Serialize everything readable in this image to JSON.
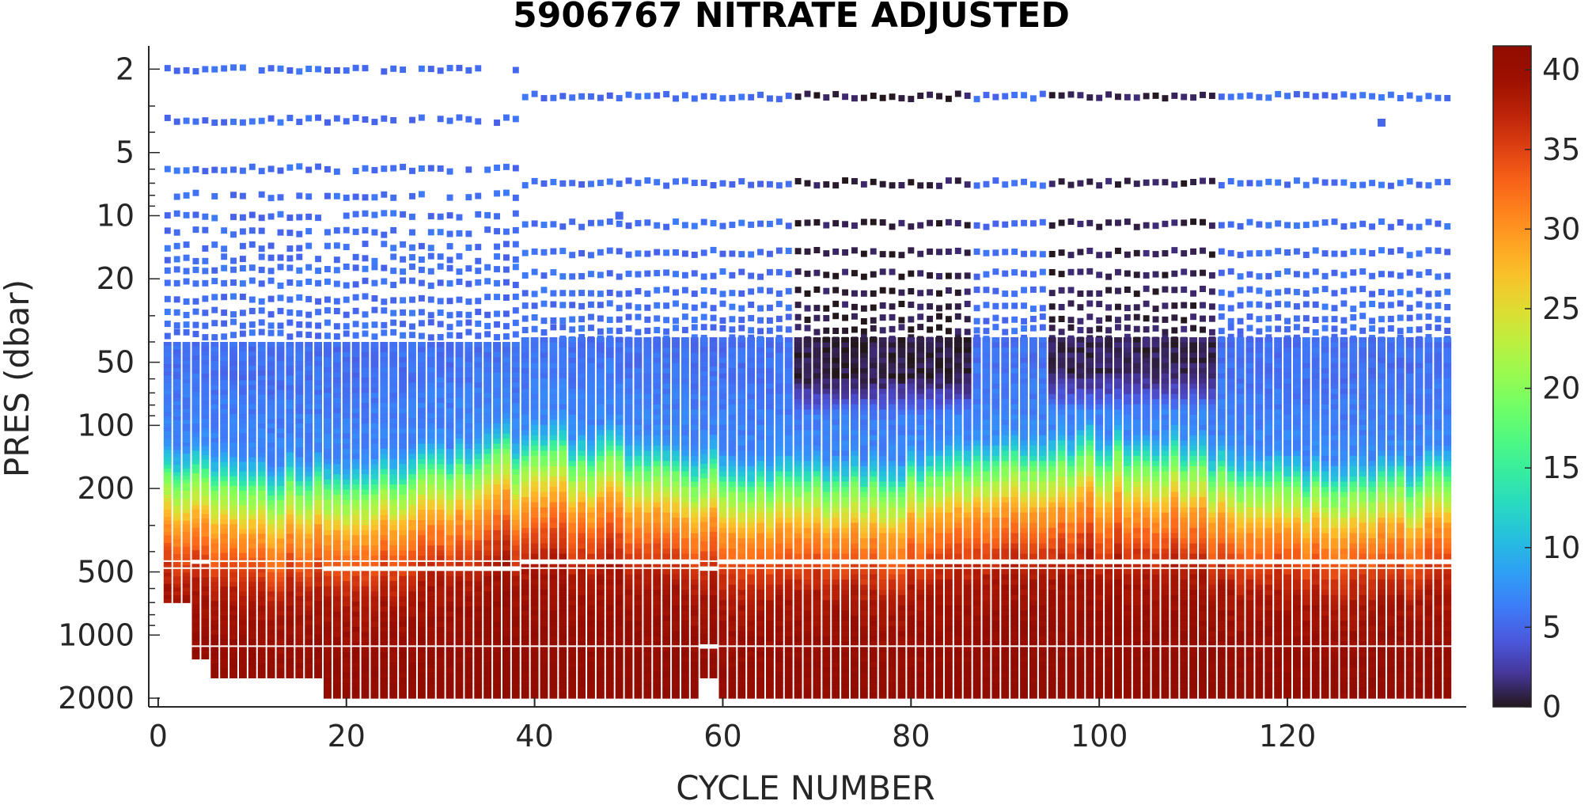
{
  "chart_data": {
    "type": "heatmap",
    "title": "5906767  NITRATE ADJUSTED",
    "xlabel": "CYCLE NUMBER",
    "ylabel": "PRES (dbar)",
    "xlim": [
      -1,
      139
    ],
    "ylim": [
      1.55,
      2200
    ],
    "yscale": "log",
    "y_reversed": true,
    "xticks": [
      0,
      20,
      40,
      60,
      80,
      100,
      120
    ],
    "yticks": [
      2,
      5,
      10,
      20,
      50,
      100,
      200,
      500,
      1000,
      2000
    ],
    "colorbar": {
      "min": 0,
      "max": 41.5,
      "ticks": [
        0,
        5,
        10,
        15,
        20,
        25,
        30,
        35,
        40
      ],
      "colormap": "turbo"
    },
    "cycles": {
      "first": 1,
      "last": 137,
      "step": 1
    },
    "cycle_groups": [
      {
        "cycles": [
          1,
          38
        ],
        "pressure_levels": [
          2,
          3.5,
          6,
          8,
          10,
          12,
          14,
          16,
          18,
          21,
          25,
          29,
          33,
          37
        ]
      },
      {
        "cycles": [
          39,
          137
        ],
        "pressure_levels": [
          2.7,
          7,
          11,
          15,
          19,
          23,
          27,
          31,
          35,
          39
        ]
      }
    ],
    "continuous_profile_start_dbar": {
      "cycles_1_38": 40,
      "cycles_39_137": 38
    },
    "profile_bottom_dbar": [
      {
        "cycles": [
          1,
          3
        ],
        "bottom": 700
      },
      {
        "cycles": [
          4,
          5
        ],
        "bottom": 1300
      },
      {
        "cycles": [
          6,
          17
        ],
        "bottom": 1600
      },
      {
        "cycles": [
          18,
          57
        ],
        "bottom": 2000
      },
      {
        "cycles": [
          58,
          59
        ],
        "bottom": 1600
      },
      {
        "cycles": [
          60,
          137
        ],
        "bottom": 2000
      }
    ],
    "gap_bands_dbar": [
      [
        440,
        448
      ],
      [
        475,
        484
      ],
      [
        1125,
        1135
      ]
    ],
    "nitrate_profile_by_depth": [
      {
        "pressure": 2,
        "value": 5.5
      },
      {
        "pressure": 50,
        "value": 5.5
      },
      {
        "pressure": 120,
        "value": 7
      },
      {
        "pressure": 150,
        "value": 12
      },
      {
        "pressure": 180,
        "value": 19
      },
      {
        "pressure": 220,
        "value": 23
      },
      {
        "pressure": 280,
        "value": 29
      },
      {
        "pressure": 350,
        "value": 32
      },
      {
        "pressure": 450,
        "value": 35.5
      },
      {
        "pressure": 600,
        "value": 38.5
      },
      {
        "pressure": 1000,
        "value": 40
      },
      {
        "pressure": 2000,
        "value": 41
      }
    ],
    "low_nitrate_surface_cycles": [
      {
        "cycles": [
          68,
          86
        ],
        "value": 0.5,
        "bottom_dbar": 90
      },
      {
        "cycles": [
          95,
          112
        ],
        "value": 0.8,
        "bottom_dbar": 85
      }
    ],
    "outlier_points": [
      {
        "cycle": 49,
        "pressure": 10,
        "value": 5
      },
      {
        "cycle": 130,
        "pressure": 3.6,
        "value": 5
      }
    ]
  }
}
